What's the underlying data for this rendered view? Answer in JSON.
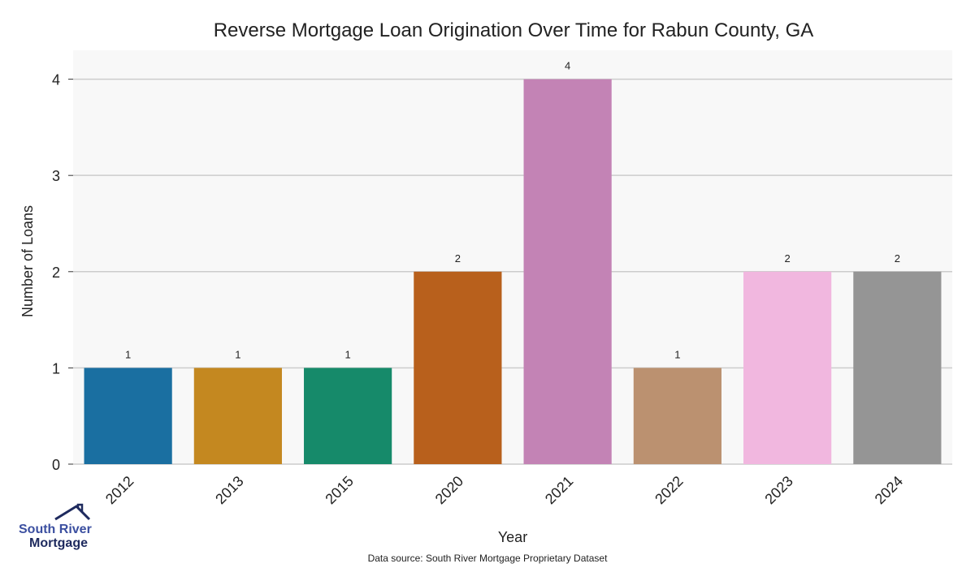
{
  "chart_data": {
    "type": "bar",
    "title": "Reverse Mortgage Loan Origination Over Time for Rabun County, GA",
    "xlabel": "Year",
    "ylabel": "Number of Loans",
    "categories": [
      "2012",
      "2013",
      "2015",
      "2020",
      "2021",
      "2022",
      "2023",
      "2024"
    ],
    "values": [
      1,
      1,
      1,
      2,
      4,
      1,
      2,
      2
    ],
    "colors": [
      "#1a6fa1",
      "#c48820",
      "#168a6a",
      "#b8601c",
      "#c383b5",
      "#bb9170",
      "#f1b7df",
      "#959595"
    ],
    "ylim": [
      0,
      4.3
    ],
    "yticks": [
      0,
      1,
      2,
      3,
      4
    ],
    "grid": true,
    "background": "#f8f8f8"
  },
  "footer": {
    "source": "Data source: South River Mortgage Proprietary Dataset",
    "logo_line1": "South River",
    "logo_line2": "Mortgage"
  }
}
